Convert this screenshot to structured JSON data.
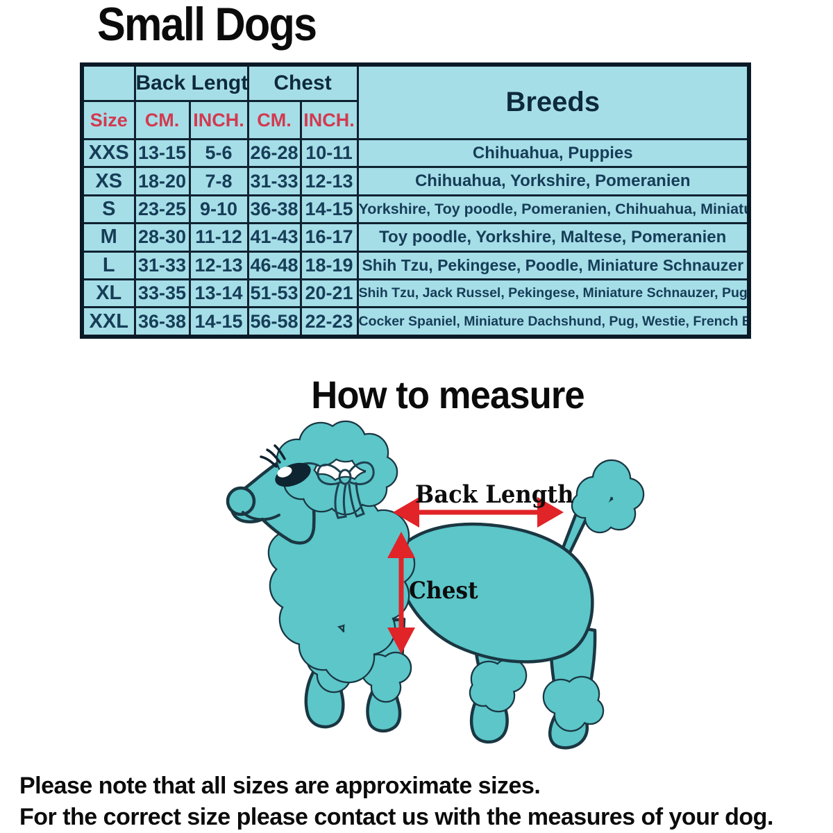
{
  "page": {
    "title": "Small Dogs",
    "measure_title": "How to measure",
    "note_line1": "Please note that all sizes are approximate sizes.",
    "note_line2": "For the correct size please contact us with the measures of your dog."
  },
  "size_table": {
    "group_headers": {
      "back_length": "Back Length",
      "chest": "Chest",
      "breeds": "Breeds"
    },
    "sub_headers": {
      "size": "Size",
      "back_cm": "CM.",
      "back_inch": "INCH.",
      "chest_cm": "CM.",
      "chest_inch": "INCH."
    },
    "rows": [
      {
        "size": "XXS",
        "back_cm": "13-15",
        "back_inch": "5-6",
        "chest_cm": "26-28",
        "chest_inch": "10-11",
        "breeds": "Chihuahua, Puppies"
      },
      {
        "size": "XS",
        "back_cm": "18-20",
        "back_inch": "7-8",
        "chest_cm": "31-33",
        "chest_inch": "12-13",
        "breeds": "Chihuahua, Yorkshire, Pomeranien"
      },
      {
        "size": "S",
        "back_cm": "23-25",
        "back_inch": "9-10",
        "chest_cm": "36-38",
        "chest_inch": "14-15",
        "breeds": "Yorkshire, Toy poodle, Pomeranien, Chihuahua, Miniature Pinscher"
      },
      {
        "size": "M",
        "back_cm": "28-30",
        "back_inch": "11-12",
        "chest_cm": "41-43",
        "chest_inch": "16-17",
        "breeds": "Toy poodle, Yorkshire, Maltese, Pomeranien"
      },
      {
        "size": "L",
        "back_cm": "31-33",
        "back_inch": "12-13",
        "chest_cm": "46-48",
        "chest_inch": "18-19",
        "breeds": "Shih Tzu, Pekingese, Poodle, Miniature Schnauzer"
      },
      {
        "size": "XL",
        "back_cm": "33-35",
        "back_inch": "13-14",
        "chest_cm": "51-53",
        "chest_inch": "20-21",
        "breeds": "Shih Tzu, Jack Russel, Pekingese, Miniature Schnauzer, Pug, Poodle, Westie"
      },
      {
        "size": "XXL",
        "back_cm": "36-38",
        "back_inch": "14-15",
        "chest_cm": "56-58",
        "chest_inch": "22-23",
        "breeds": "Cocker Spaniel, Miniature Dachshund, Pug, Westie, French Bulldog, Beagle"
      }
    ]
  },
  "diagram": {
    "illustration": "poodle-dog-side-view",
    "back_length_label": "Back Length",
    "chest_label": "Chest"
  },
  "colors": {
    "dog_fill": "#5CC6C9",
    "dog_outline": "#1A3742",
    "arrow_red": "#E02428",
    "table_background": "#A6DEE8",
    "table_header_red": "#D23A4F",
    "table_text_navy": "#163D57",
    "table_grid": "#0E2230"
  }
}
